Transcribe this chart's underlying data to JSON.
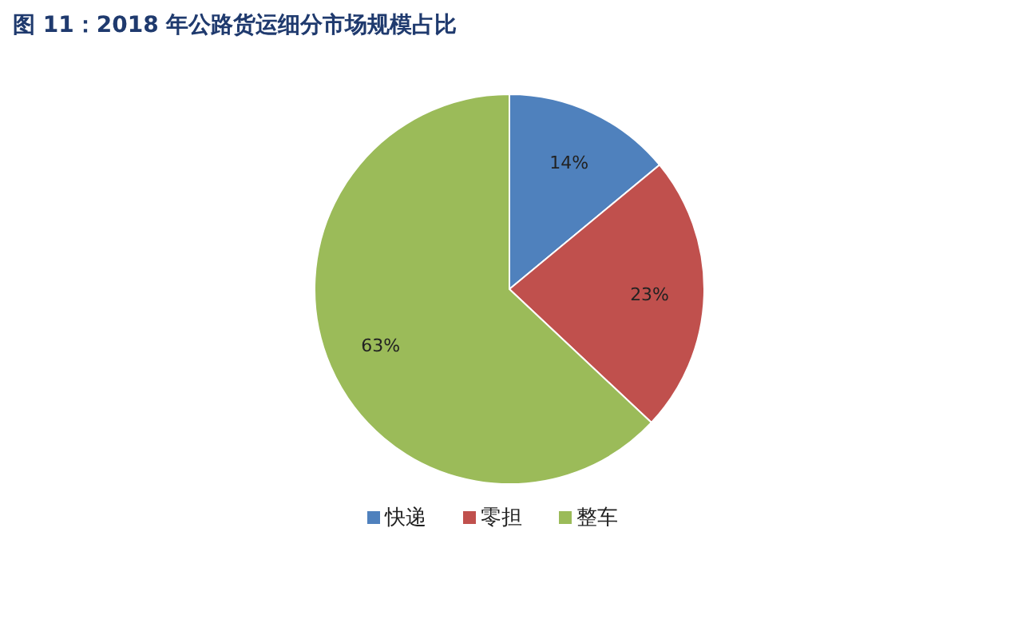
{
  "chart_data": {
    "type": "pie",
    "title": "图 11：2018 年公路货运细分市场规模占比",
    "categories": [
      "快递",
      "零担",
      "整车"
    ],
    "values": [
      14,
      23,
      63
    ],
    "value_labels": [
      "14%",
      "23%",
      "63%"
    ],
    "colors": [
      "#4f81bd",
      "#c0504d",
      "#9bbb59"
    ],
    "legend": "bottom"
  }
}
